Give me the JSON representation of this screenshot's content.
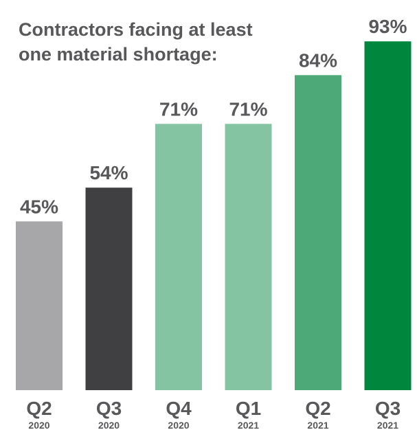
{
  "chart_data": {
    "type": "bar",
    "title_lines": [
      "Contractors facing at least",
      "one material shortage:"
    ],
    "categories": [
      {
        "quarter": "Q2",
        "year": "2020"
      },
      {
        "quarter": "Q3",
        "year": "2020"
      },
      {
        "quarter": "Q4",
        "year": "2020"
      },
      {
        "quarter": "Q1",
        "year": "2021"
      },
      {
        "quarter": "Q2",
        "year": "2021"
      },
      {
        "quarter": "Q3",
        "year": "2021"
      }
    ],
    "values": [
      45,
      54,
      71,
      71,
      84,
      93
    ],
    "value_labels": [
      "45%",
      "54%",
      "71%",
      "71%",
      "84%",
      "93%"
    ],
    "colors": [
      "#a7a7aa",
      "#404042",
      "#84c4a3",
      "#84c4a3",
      "#4ea979",
      "#00873e"
    ],
    "ylim": [
      0,
      100
    ],
    "xlabel": "",
    "ylabel": "",
    "grid": false,
    "legend": "none"
  }
}
